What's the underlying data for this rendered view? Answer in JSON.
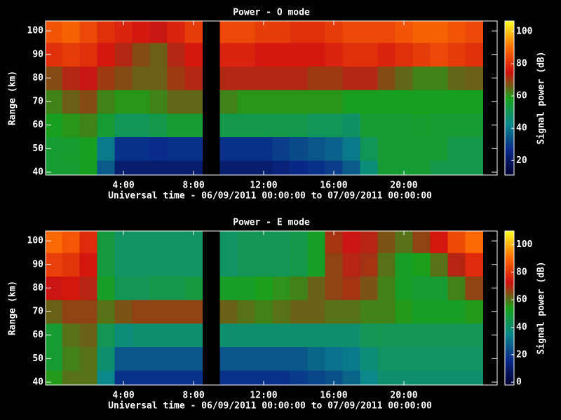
{
  "chart_data": [
    {
      "type": "heatmap",
      "title": "Power - O mode",
      "xlabel": "Universal time - 06/09/2011 00:00:00 to 07/09/2011 00:00:00",
      "ylabel": "Range (km)",
      "colorbar_label": "Signal power (dB)",
      "x": [
        0,
        1,
        2,
        3,
        4,
        5,
        6,
        7,
        8,
        9,
        10,
        11,
        12,
        13,
        14,
        15,
        16,
        17,
        18,
        19,
        20,
        21,
        22,
        23,
        24
      ],
      "y": [
        40,
        50,
        60,
        70,
        80,
        90,
        100
      ],
      "z": [
        [
          55,
          55,
          58,
          35,
          22,
          22,
          22,
          22,
          22,
          null,
          22,
          22,
          22,
          24,
          26,
          28,
          30,
          35,
          45,
          55,
          55,
          55,
          52,
          52,
          52
        ],
        [
          55,
          56,
          58,
          40,
          28,
          28,
          27,
          28,
          28,
          null,
          28,
          28,
          28,
          30,
          32,
          34,
          36,
          40,
          50,
          55,
          55,
          55,
          55,
          52,
          52
        ],
        [
          58,
          60,
          62,
          55,
          50,
          50,
          52,
          55,
          55,
          null,
          52,
          52,
          52,
          52,
          52,
          50,
          50,
          48,
          55,
          55,
          55,
          56,
          55,
          55,
          55
        ],
        [
          62,
          66,
          68,
          62,
          60,
          60,
          62,
          65,
          65,
          null,
          62,
          60,
          60,
          60,
          60,
          60,
          60,
          58,
          58,
          58,
          58,
          58,
          58,
          58,
          58
        ],
        [
          68,
          72,
          74,
          70,
          68,
          66,
          66,
          70,
          72,
          null,
          72,
          72,
          72,
          72,
          72,
          70,
          70,
          72,
          72,
          68,
          65,
          62,
          62,
          65,
          66
        ],
        [
          80,
          82,
          80,
          76,
          72,
          68,
          66,
          72,
          76,
          null,
          78,
          78,
          76,
          76,
          76,
          76,
          78,
          80,
          80,
          78,
          80,
          82,
          84,
          82,
          80
        ],
        [
          86,
          88,
          84,
          80,
          78,
          76,
          74,
          78,
          82,
          null,
          84,
          84,
          82,
          82,
          80,
          80,
          82,
          84,
          84,
          84,
          86,
          88,
          88,
          86,
          84
        ]
      ],
      "xlim": [
        -0.44,
        25.32
      ],
      "ylim": [
        38.8,
        104.2
      ],
      "xticks": [
        {
          "value": 4,
          "label": "4:00"
        },
        {
          "value": 8,
          "label": "8:00"
        },
        {
          "value": 12,
          "label": "12:00"
        },
        {
          "value": 16,
          "label": "16:00"
        },
        {
          "value": 20,
          "label": "20:00"
        }
      ],
      "yticks": [
        40,
        50,
        60,
        70,
        80,
        90,
        100
      ],
      "clim": [
        11,
        106.5
      ],
      "cticks": [
        20,
        40,
        60,
        80,
        100
      ],
      "colormap": [
        "#000030",
        "#0a2a8a",
        "#0a8a8a",
        "#1aa01a",
        "#d01010",
        "#ff7000",
        "#ffff20"
      ]
    },
    {
      "type": "heatmap",
      "title": "Power - E mode",
      "xlabel": "Universal time - 06/09/2011 00:00:00 to 07/09/2011 00:00:00",
      "ylabel": "Range (km)",
      "colorbar_label": "Signal power (dB)",
      "x": [
        0,
        1,
        2,
        3,
        4,
        5,
        6,
        7,
        8,
        9,
        10,
        11,
        12,
        13,
        14,
        15,
        16,
        17,
        18,
        19,
        20,
        21,
        22,
        23,
        24
      ],
      "y": [
        40,
        50,
        60,
        70,
        80,
        90,
        100
      ],
      "z": [
        [
          55,
          60,
          60,
          35,
          18,
          18,
          18,
          18,
          18,
          null,
          18,
          18,
          18,
          18,
          20,
          22,
          24,
          28,
          35,
          40,
          40,
          40,
          40,
          40,
          40
        ],
        [
          50,
          58,
          60,
          40,
          25,
          25,
          25,
          25,
          25,
          null,
          25,
          25,
          25,
          25,
          25,
          28,
          30,
          32,
          38,
          42,
          42,
          42,
          42,
          42,
          42
        ],
        [
          50,
          60,
          62,
          45,
          38,
          40,
          40,
          40,
          40,
          null,
          40,
          40,
          40,
          40,
          40,
          40,
          40,
          40,
          44,
          45,
          45,
          45,
          45,
          45,
          45
        ],
        [
          62,
          66,
          66,
          60,
          64,
          66,
          66,
          66,
          66,
          null,
          62,
          60,
          58,
          60,
          62,
          62,
          60,
          60,
          58,
          58,
          55,
          52,
          52,
          52,
          55
        ],
        [
          72,
          74,
          70,
          52,
          44,
          44,
          46,
          46,
          48,
          null,
          52,
          52,
          54,
          56,
          58,
          62,
          66,
          68,
          64,
          58,
          52,
          50,
          50,
          58,
          66
        ],
        [
          82,
          80,
          74,
          48,
          42,
          42,
          42,
          42,
          42,
          null,
          42,
          44,
          44,
          44,
          46,
          52,
          66,
          70,
          68,
          60,
          52,
          54,
          60,
          70,
          78
        ],
        [
          90,
          86,
          78,
          48,
          42,
          42,
          42,
          42,
          42,
          null,
          42,
          44,
          44,
          44,
          46,
          52,
          68,
          72,
          70,
          64,
          60,
          66,
          74,
          84,
          90
        ]
      ],
      "xlim": [
        -0.44,
        25.32
      ],
      "ylim": [
        38.8,
        104.2
      ],
      "xticks": [
        {
          "value": 4,
          "label": "4:00"
        },
        {
          "value": 8,
          "label": "8:00"
        },
        {
          "value": 12,
          "label": "12:00"
        },
        {
          "value": 16,
          "label": "16:00"
        },
        {
          "value": 20,
          "label": "20:00"
        }
      ],
      "yticks": [
        40,
        50,
        60,
        70,
        80,
        90,
        100
      ],
      "clim": [
        -2,
        110
      ],
      "cticks": [
        0,
        20,
        40,
        60,
        80,
        100
      ],
      "colormap": [
        "#000030",
        "#0a2a8a",
        "#0a8a8a",
        "#1aa01a",
        "#d01010",
        "#ff7000",
        "#ffff20"
      ]
    }
  ]
}
